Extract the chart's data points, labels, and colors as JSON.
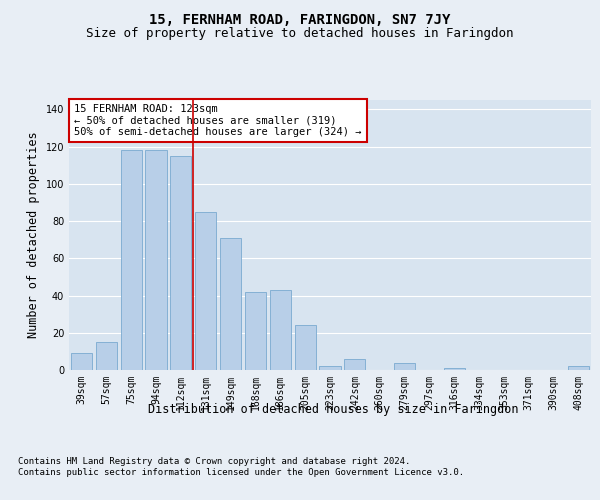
{
  "title": "15, FERNHAM ROAD, FARINGDON, SN7 7JY",
  "subtitle": "Size of property relative to detached houses in Faringdon",
  "xlabel": "Distribution of detached houses by size in Faringdon",
  "ylabel": "Number of detached properties",
  "bar_labels": [
    "39sqm",
    "57sqm",
    "75sqm",
    "94sqm",
    "112sqm",
    "131sqm",
    "149sqm",
    "168sqm",
    "186sqm",
    "205sqm",
    "223sqm",
    "242sqm",
    "260sqm",
    "279sqm",
    "297sqm",
    "316sqm",
    "334sqm",
    "353sqm",
    "371sqm",
    "390sqm",
    "408sqm"
  ],
  "bar_values": [
    9,
    15,
    118,
    118,
    115,
    85,
    71,
    42,
    43,
    24,
    2,
    6,
    0,
    4,
    0,
    1,
    0,
    0,
    0,
    0,
    2
  ],
  "bar_color": "#b8cfe8",
  "bar_edge_color": "#7aaad0",
  "bg_color": "#e8eef5",
  "plot_bg_color": "#d8e4f0",
  "grid_color": "#ffffff",
  "vline_x": 4.5,
  "vline_color": "#cc0000",
  "annotation_text": "15 FERNHAM ROAD: 123sqm\n← 50% of detached houses are smaller (319)\n50% of semi-detached houses are larger (324) →",
  "annotation_box_color": "#ffffff",
  "annotation_box_edge_color": "#cc0000",
  "ylim": [
    0,
    145
  ],
  "yticks": [
    0,
    20,
    40,
    60,
    80,
    100,
    120,
    140
  ],
  "footnote": "Contains HM Land Registry data © Crown copyright and database right 2024.\nContains public sector information licensed under the Open Government Licence v3.0.",
  "title_fontsize": 10,
  "subtitle_fontsize": 9,
  "annotation_fontsize": 7.5,
  "tick_fontsize": 7,
  "ylabel_fontsize": 8.5,
  "xlabel_fontsize": 8.5,
  "footnote_fontsize": 6.5
}
